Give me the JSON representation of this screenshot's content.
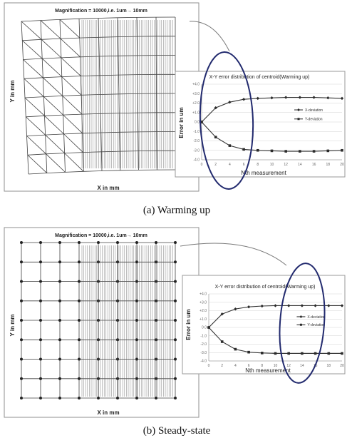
{
  "captions": [
    "(a)  Warming  up",
    "(b)  Steady-state"
  ],
  "chart_data": [
    {
      "panel": "a",
      "type": "mesh-plot",
      "title": "Magnification = 10000,i.e.  1um→ 10mm",
      "xlabel": "X in mm",
      "ylabel": "Y in mm"
    },
    {
      "panel": "a",
      "type": "line",
      "title": "X-Y error distribution of centroid(Warming up)",
      "xlabel": "Nth measurement",
      "ylabel": "Error in um",
      "x": [
        0,
        2,
        4,
        6,
        8,
        10,
        12,
        14,
        16,
        18,
        20
      ],
      "xlim": [
        0,
        20
      ],
      "ylim": [
        -4,
        4
      ],
      "yticks": [
        4,
        3,
        2,
        1,
        0,
        -1,
        -2,
        -3,
        -4
      ],
      "series": [
        {
          "name": "X-deviation",
          "marker": "diamond",
          "values": [
            0,
            1.5,
            2.1,
            2.4,
            2.5,
            2.55,
            2.6,
            2.6,
            2.6,
            2.55,
            2.5
          ]
        },
        {
          "name": "Y-deviation",
          "marker": "square",
          "values": [
            0,
            -1.6,
            -2.5,
            -2.9,
            -3.0,
            -3.05,
            -3.1,
            -3.1,
            -3.1,
            -3.05,
            -3.0
          ]
        }
      ]
    },
    {
      "panel": "b",
      "type": "mesh-plot",
      "title": "Magnification = 10000,i.e.  1um→ 10mm",
      "xlabel": "X in mm",
      "ylabel": "Y in mm"
    },
    {
      "panel": "b",
      "type": "line",
      "title": "X-Y error distribution of centroid(Warming up)",
      "xlabel": "Nth measurement",
      "ylabel": "Error in um",
      "x": [
        0,
        2,
        4,
        6,
        8,
        10,
        12,
        14,
        16,
        18,
        20
      ],
      "xlim": [
        0,
        20
      ],
      "ylim": [
        -4,
        4
      ],
      "yticks": [
        4,
        3,
        2,
        1,
        0,
        -1,
        -2,
        -3,
        -4
      ],
      "series": [
        {
          "name": "X-deviation",
          "marker": "diamond",
          "values": [
            0,
            1.6,
            2.2,
            2.45,
            2.55,
            2.6,
            2.6,
            2.6,
            2.6,
            2.6,
            2.6
          ]
        },
        {
          "name": "Y-deviation",
          "marker": "square",
          "values": [
            0,
            -1.7,
            -2.6,
            -2.95,
            -3.05,
            -3.1,
            -3.1,
            -3.1,
            -3.1,
            -3.1,
            -3.1
          ]
        }
      ]
    }
  ]
}
